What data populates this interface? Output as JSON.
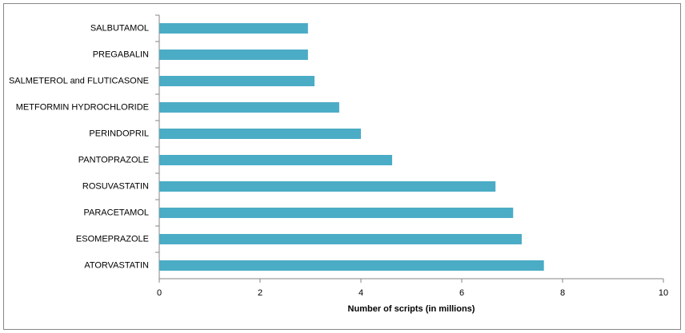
{
  "chart_data": {
    "type": "bar",
    "orientation": "horizontal",
    "categories": [
      "SALBUTAMOL",
      "PREGABALIN",
      "SALMETEROL and FLUTICASONE",
      "METFORMIN HYDROCHLORIDE",
      "PERINDOPRIL",
      "PANTOPRAZOLE",
      "ROSUVASTATIN",
      "PARACETAMOL",
      "ESOMEPRAZOLE",
      "ATORVASTATIN"
    ],
    "values": [
      2.95,
      2.95,
      3.08,
      3.57,
      4.0,
      4.62,
      6.67,
      7.02,
      7.19,
      7.63
    ],
    "color": "#4bacc6",
    "x_label": "Number of scripts (in millions)",
    "xlim": [
      0,
      10
    ],
    "xticks": [
      0,
      2,
      4,
      6,
      8,
      10
    ],
    "grid": false
  }
}
